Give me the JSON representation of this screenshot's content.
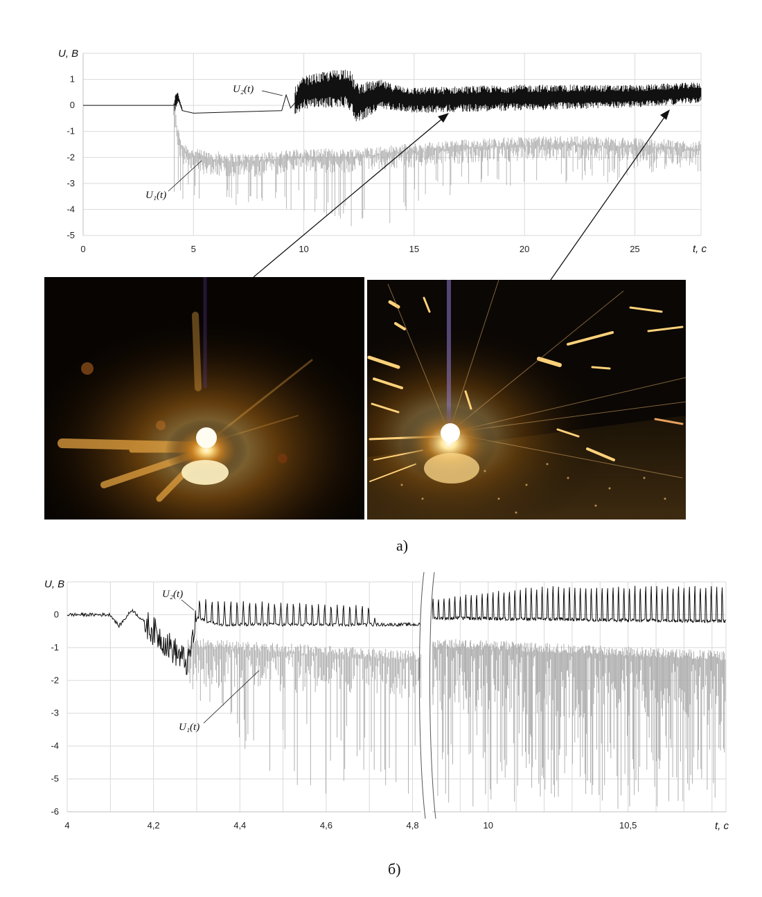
{
  "figure": {
    "caption_a": "а)",
    "caption_b": "б)"
  },
  "photos": [
    {
      "scene": "welding-arc-glow"
    },
    {
      "scene": "welding-arc-sparks"
    }
  ],
  "colors": {
    "u1": "#a8a8a8",
    "u2": "#111111",
    "grid": "#d9d9d9",
    "axis": "#bfbfbf"
  },
  "chart_data": [
    {
      "type": "line",
      "ylabel": "U, B",
      "xlabel": "t, c",
      "xlim": [
        0,
        28
      ],
      "ylim": [
        -5,
        2
      ],
      "x_ticks": [
        "0",
        "5",
        "10",
        "15",
        "20",
        "25"
      ],
      "y_ticks": [
        "1",
        "0",
        "-1",
        "-2",
        "-3",
        "-4",
        "-5"
      ],
      "grid": true,
      "series": [
        {
          "name": "U₂(t)",
          "points": [
            [
              0,
              0
            ],
            [
              4.1,
              0
            ],
            [
              4.3,
              0.3
            ],
            [
              4.5,
              -0.2
            ],
            [
              5,
              -0.3
            ],
            [
              7,
              -0.25
            ],
            [
              9,
              -0.2
            ],
            [
              9.2,
              0.4
            ],
            [
              9.4,
              -0.1
            ],
            [
              10,
              0.5
            ],
            [
              12,
              0.7
            ],
            [
              12.4,
              0.1
            ],
            [
              13.5,
              0.4
            ],
            [
              15,
              0.2
            ],
            [
              20,
              0.3
            ],
            [
              25,
              0.35
            ],
            [
              27,
              0.45
            ],
            [
              28,
              0.5
            ]
          ],
          "noise_band": [
            [
              4.2,
              0.3
            ],
            [
              4.4,
              0.1
            ],
            [
              9.6,
              0.6
            ],
            [
              12.2,
              0.8
            ],
            [
              14,
              0.5
            ],
            [
              20,
              0.5
            ],
            [
              28,
              0.4
            ]
          ]
        },
        {
          "name": "U₁(t)",
          "points": [
            [
              4.1,
              0
            ],
            [
              4.3,
              -1.2
            ],
            [
              4.5,
              -1.7
            ],
            [
              5,
              -2.0
            ],
            [
              7,
              -2.2
            ],
            [
              10,
              -2.0
            ],
            [
              12,
              -2.0
            ],
            [
              15,
              -1.8
            ],
            [
              18,
              -1.6
            ],
            [
              22,
              -1.5
            ],
            [
              25,
              -1.6
            ],
            [
              28,
              -1.7
            ]
          ],
          "min_spikes": [
            [
              5.5,
              -3.8
            ],
            [
              6,
              -4.0
            ],
            [
              8,
              -3.8
            ],
            [
              11,
              -4.3
            ],
            [
              12.2,
              -4.8
            ],
            [
              12.5,
              -4.8
            ],
            [
              13.3,
              -4.9
            ],
            [
              16,
              -3.6
            ],
            [
              18,
              -3.2
            ],
            [
              21,
              -3.0
            ],
            [
              24,
              -3.0
            ],
            [
              26,
              -2.6
            ]
          ]
        }
      ]
    },
    {
      "type": "line",
      "ylabel": "U, B",
      "xlabel": "t, c",
      "axis_break": true,
      "segments": [
        {
          "xlim": [
            4.0,
            4.82
          ],
          "x_ticks": [
            "4",
            "4,2",
            "4,4",
            "4,6",
            "4,8"
          ]
        },
        {
          "xlim": [
            9.8,
            10.85
          ],
          "x_ticks": [
            "10",
            "10,5"
          ]
        }
      ],
      "ylim": [
        -6,
        1
      ],
      "y_ticks": [
        "0",
        "-1",
        "-2",
        "-3",
        "-4",
        "-5",
        "-6"
      ],
      "grid": true,
      "series": [
        {
          "name": "U₂(t)",
          "baseline": [
            [
              4.0,
              0
            ],
            [
              4.1,
              0
            ],
            [
              4.12,
              -0.35
            ],
            [
              4.15,
              0.15
            ],
            [
              4.2,
              -0.5
            ],
            [
              4.28,
              -1.5
            ],
            [
              4.3,
              -0.1
            ],
            [
              4.35,
              -0.3
            ],
            [
              4.6,
              -0.3
            ],
            [
              4.82,
              -0.3
            ],
            [
              9.8,
              -0.1
            ],
            [
              10.85,
              -0.2
            ]
          ],
          "pulse_peak": [
            [
              4.3,
              0.5
            ],
            [
              4.5,
              0.4
            ],
            [
              4.7,
              0.3
            ],
            [
              4.72,
              -0.3
            ],
            [
              9.8,
              0.5
            ],
            [
              10.2,
              0.9
            ],
            [
              10.85,
              0.9
            ]
          ]
        },
        {
          "name": "U₁(t)",
          "baseline": [
            [
              4.28,
              -1.0
            ],
            [
              4.82,
              -1.4
            ],
            [
              9.8,
              -1.0
            ],
            [
              10.85,
              -1.4
            ]
          ],
          "min_spikes": [
            [
              4.3,
              -2.4
            ],
            [
              4.4,
              -5.0
            ],
            [
              4.5,
              -5.0
            ],
            [
              4.6,
              -5.6
            ],
            [
              4.7,
              -5.2
            ],
            [
              4.8,
              -5.5
            ],
            [
              10.0,
              -5.9
            ],
            [
              10.3,
              -6.0
            ],
            [
              10.6,
              -6.0
            ],
            [
              10.85,
              -5.5
            ]
          ]
        }
      ]
    }
  ]
}
